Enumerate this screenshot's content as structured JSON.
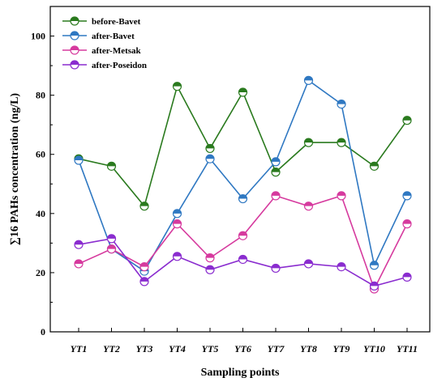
{
  "chart_data": {
    "type": "line",
    "title": "",
    "xlabel": "Sampling points",
    "ylabel": "∑16 PAHs concentration (ng/L)",
    "categories": [
      "YT1",
      "YT2",
      "YT3",
      "YT4",
      "YT5",
      "YT6",
      "YT7",
      "YT8",
      "YT9",
      "YT10",
      "YT11"
    ],
    "ylim": [
      0,
      110
    ],
    "yticks": [
      0,
      20,
      40,
      60,
      80,
      100
    ],
    "grid": false,
    "legend_position": "top-left",
    "series": [
      {
        "name": "before-Bavet",
        "color": "#2a7a1e",
        "values": [
          58.5,
          56,
          42.5,
          83,
          62,
          81,
          54,
          64,
          64,
          56,
          71.5
        ]
      },
      {
        "name": "after-Bavet",
        "color": "#2f78c2",
        "values": [
          58,
          28,
          20.5,
          40,
          58.5,
          45,
          57.5,
          85,
          77,
          22.5,
          46
        ]
      },
      {
        "name": "after-Metsak",
        "color": "#d63a9e",
        "values": [
          23,
          28,
          22,
          36.5,
          25,
          32.5,
          46,
          42.5,
          46,
          14.5,
          36.5
        ]
      },
      {
        "name": "after-Poseidon",
        "color": "#8a2ccf",
        "values": [
          29.5,
          31.5,
          17,
          25.5,
          21,
          24.5,
          21.5,
          23,
          22,
          15.5,
          18.5
        ]
      }
    ]
  }
}
